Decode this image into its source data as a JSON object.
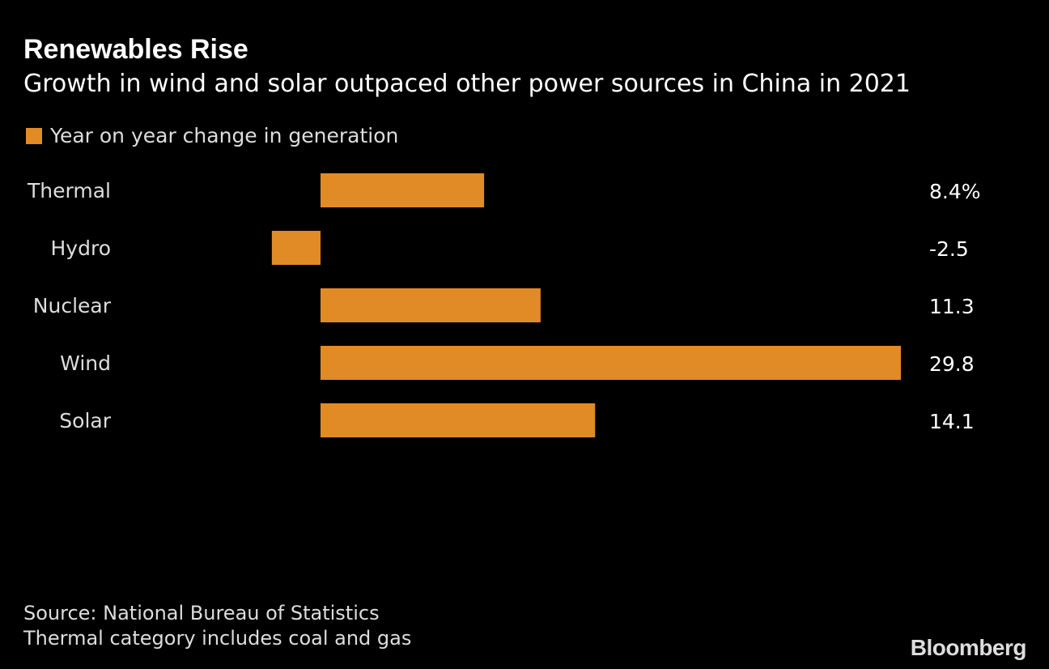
{
  "chart_data": {
    "type": "bar",
    "orientation": "horizontal",
    "title": "Renewables Rise",
    "subtitle": "Growth in wind and solar outpaced other power sources in China in 2021",
    "categories": [
      "Thermal",
      "Hydro",
      "Nuclear",
      "Wind",
      "Solar"
    ],
    "series": [
      {
        "name": "Year on year change in generation",
        "values": [
          8.4,
          -2.5,
          11.3,
          29.8,
          14.1
        ],
        "color": "#e08b26"
      }
    ],
    "value_labels": [
      "8.4%",
      "-2.5",
      "11.3",
      "29.8",
      "14.1"
    ],
    "xlim": [
      -2.5,
      29.8
    ],
    "grid": false,
    "legend_placement": "top-left"
  },
  "footer": {
    "source": "Source: National Bureau of Statistics",
    "note": "Thermal category includes coal and gas"
  },
  "logo": "Bloomberg",
  "colors": {
    "background": "#000000",
    "bar": "#e08b26",
    "text": "#e0e0e0"
  }
}
